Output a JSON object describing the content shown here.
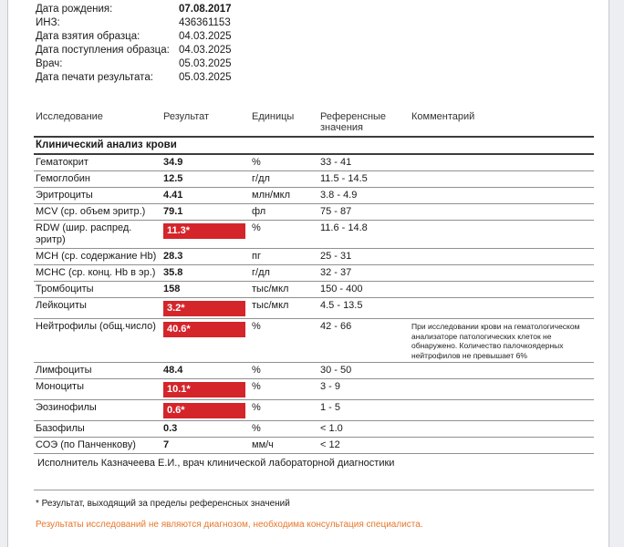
{
  "page": {
    "metadata": [
      {
        "label": "Дата рождения:",
        "value": "07.08.2017",
        "bold": true
      },
      {
        "label": "ИНЗ:",
        "value": "436361153",
        "bold": false
      },
      {
        "label": "Дата взятия образца:",
        "value": "04.03.2025",
        "bold": false
      },
      {
        "label": "Дата поступления образца:",
        "value": "04.03.2025",
        "bold": false
      },
      {
        "label": "Врач:",
        "value": "05.03.2025",
        "bold": false
      },
      {
        "label": "Дата печати результата:",
        "value": "05.03.2025",
        "bold": false
      }
    ],
    "table": {
      "headers": [
        "Исследование",
        "Результат",
        "Единицы",
        "Референсные значения",
        "Комментарий"
      ],
      "section_title": "Клинический анализ крови",
      "rows": [
        {
          "name": "Гематокрит",
          "result": "34.9",
          "flagged": false,
          "units": "%",
          "reference": "33 - 41",
          "comment": ""
        },
        {
          "name": "Гемоглобин",
          "result": "12.5",
          "flagged": false,
          "units": "г/дл",
          "reference": "11.5 - 14.5",
          "comment": ""
        },
        {
          "name": "Эритроциты",
          "result": "4.41",
          "flagged": false,
          "units": "млн/мкл",
          "reference": "3.8 - 4.9",
          "comment": ""
        },
        {
          "name": "MCV (ср. объем эритр.)",
          "result": "79.1",
          "flagged": false,
          "units": "фл",
          "reference": "75 - 87",
          "comment": ""
        },
        {
          "name": "RDW (шир. распред. эритр)",
          "result": "11.3*",
          "flagged": true,
          "units": "%",
          "reference": "11.6 - 14.8",
          "comment": ""
        },
        {
          "name": "MCH (ср. содержание Hb)",
          "result": "28.3",
          "flagged": false,
          "units": "пг",
          "reference": "25 - 31",
          "comment": ""
        },
        {
          "name": "MCHC (ср. конц. Hb в эр.)",
          "result": "35.8",
          "flagged": false,
          "units": "г/дл",
          "reference": "32 - 37",
          "comment": ""
        },
        {
          "name": "Тромбоциты",
          "result": "158",
          "flagged": false,
          "units": "тыс/мкл",
          "reference": "150 - 400",
          "comment": ""
        },
        {
          "name": "Лейкоциты",
          "result": "3.2*",
          "flagged": true,
          "units": "тыс/мкл",
          "reference": "4.5 - 13.5",
          "comment": ""
        },
        {
          "name": "Нейтрофилы (общ.число)",
          "result": "40.6*",
          "flagged": true,
          "units": "%",
          "reference": "42 - 66",
          "comment": "При исследовании крови на гематологическом анализаторе патологических клеток не обнаружено. Количество палочкоядерных нейтрофилов не превышает 6%"
        },
        {
          "name": "Лимфоциты",
          "result": "48.4",
          "flagged": false,
          "units": "%",
          "reference": "30 - 50",
          "comment": ""
        },
        {
          "name": "Моноциты",
          "result": "10.1*",
          "flagged": true,
          "units": "%",
          "reference": "3 - 9",
          "comment": ""
        },
        {
          "name": "Эозинофилы",
          "result": "0.6*",
          "flagged": true,
          "units": "%",
          "reference": "1 - 5",
          "comment": ""
        },
        {
          "name": "Базофилы",
          "result": "0.3",
          "flagged": false,
          "units": "%",
          "reference": "< 1.0",
          "comment": ""
        },
        {
          "name": "СОЭ (по Панченкову)",
          "result": "7",
          "flagged": false,
          "units": "мм/ч",
          "reference": "< 12",
          "comment": ""
        }
      ]
    },
    "executor_line": "Исполнитель Казначеева  Е.И., врач клинической лабораторной диагностики",
    "footnote": "* Результат, выходящий за пределы референсных значений",
    "disclaimer": "Результаты исследований не являются диагнозом, необходима консультация специалиста.",
    "colors": {
      "flag_bg": "#d4252b",
      "flag_text": "#ffffff",
      "disclaimer_text": "#e8762a"
    }
  }
}
